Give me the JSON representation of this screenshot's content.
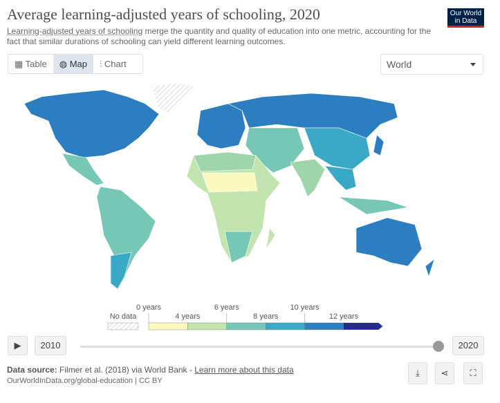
{
  "header": {
    "title": "Average learning-adjusted years of schooling, 2020",
    "subtitle_link": "Learning-adjusted years of schooling",
    "subtitle": " merge the quantity and quality of education into one metric, accounting for the fact that similar durations of schooling can yield different learning outcomes.",
    "logo": [
      "Our World",
      "in Data"
    ]
  },
  "tabs": [
    "Table",
    "Map",
    "Chart"
  ],
  "region": "World",
  "legend": {
    "no_data": "No data",
    "bins": [
      {
        "value": 0,
        "label": "0 years"
      },
      {
        "value": 4,
        "label": "4 years"
      },
      {
        "value": 6,
        "label": "6 years"
      },
      {
        "value": 8,
        "label": "8 years"
      },
      {
        "value": 10,
        "label": "10 years"
      },
      {
        "value": 12,
        "label": "12 years"
      }
    ],
    "colors": [
      "#fbf8c0",
      "#c2e4ae",
      "#76c7b6",
      "#3aa9c7",
      "#2d7ec0",
      "#252e8c"
    ]
  },
  "timeline": {
    "start": "2010",
    "end": "2020"
  },
  "footer": {
    "source_label": "Data source:",
    "source": " Filmer et al. (2018) via World Bank - ",
    "link": "Learn more about this data",
    "url": "OurWorldInData.org/global-education | CC BY"
  }
}
